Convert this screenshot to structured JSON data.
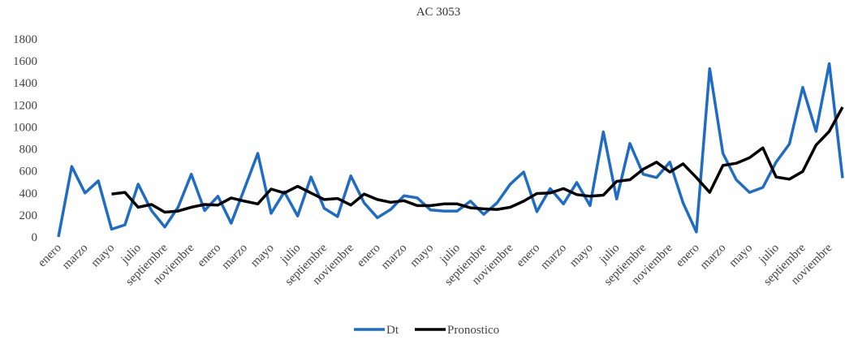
{
  "chart_data": {
    "type": "line",
    "title": "AC 3053",
    "categories": [
      "enero",
      null,
      "marzo",
      null,
      "mayo",
      null,
      "julio",
      null,
      "septiembre",
      null,
      "noviembre",
      null,
      "enero",
      null,
      "marzo",
      null,
      "mayo",
      null,
      "julio",
      null,
      "septiembre",
      null,
      "noviembre",
      null,
      "enero",
      null,
      "marzo",
      null,
      "mayo",
      null,
      "julio",
      null,
      "septiembre",
      null,
      "noviembre",
      null,
      "enero",
      null,
      "marzo",
      null,
      "mayo",
      null,
      "julio",
      null,
      "septiembre",
      null,
      "noviembre",
      null,
      "enero",
      null,
      "marzo",
      null,
      "mayo",
      null,
      "julio",
      null,
      "septiembre",
      null,
      "noviembre",
      null
    ],
    "series": [
      {
        "name": "Dt",
        "color": "#1f6cc4",
        "values": [
          0,
          640,
          400,
          510,
          70,
          110,
          480,
          240,
          90,
          270,
          570,
          240,
          370,
          125,
          440,
          760,
          215,
          410,
          190,
          545,
          260,
          185,
          555,
          310,
          175,
          250,
          375,
          355,
          245,
          235,
          235,
          325,
          205,
          310,
          480,
          590,
          230,
          440,
          300,
          495,
          285,
          955,
          345,
          850,
          570,
          540,
          680,
          310,
          45,
          1530,
          760,
          520,
          405,
          450,
          680,
          845,
          1360,
          960,
          1575,
          535
        ]
      },
      {
        "name": "Pronostico",
        "color": "#000000",
        "values": [
          null,
          null,
          null,
          null,
          390,
          405,
          270,
          295,
          225,
          235,
          270,
          295,
          290,
          355,
          325,
          300,
          435,
          400,
          460,
          400,
          340,
          350,
          290,
          390,
          340,
          315,
          330,
          285,
          285,
          300,
          300,
          265,
          255,
          250,
          270,
          325,
          395,
          400,
          440,
          385,
          370,
          380,
          505,
          520,
          615,
          680,
          590,
          665,
          540,
          405,
          650,
          670,
          720,
          810,
          545,
          525,
          595,
          835,
          960,
          1180
        ]
      }
    ],
    "ylim": [
      0,
      1800
    ],
    "yticks": [
      0,
      200,
      400,
      600,
      800,
      1000,
      1200,
      1400,
      1600,
      1800
    ],
    "grid": false,
    "legend": "bottom"
  }
}
